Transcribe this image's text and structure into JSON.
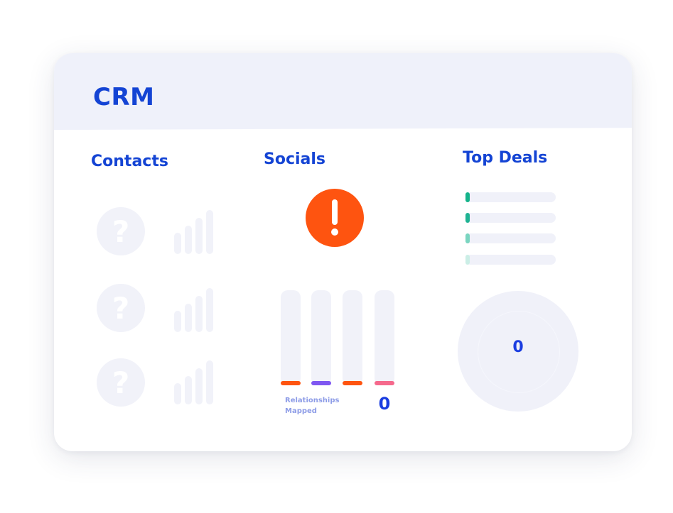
{
  "app": {
    "title": "CRM"
  },
  "contacts": {
    "title": "Contacts",
    "items": [
      {
        "avatar_glyph": "?",
        "signal_bars": 4
      },
      {
        "avatar_glyph": "?",
        "signal_bars": 4
      },
      {
        "avatar_glyph": "?",
        "signal_bars": 4
      }
    ]
  },
  "socials": {
    "title": "Socials",
    "alert_icon": "exclamation-alert-icon",
    "alert_color": "#fe5410",
    "bars": [
      {
        "accent_color": "#fe5410"
      },
      {
        "accent_color": "#7f57f1"
      },
      {
        "accent_color": "#fe5410"
      },
      {
        "accent_color": "#f5698c"
      }
    ],
    "relationships_label_line1": "Relationships",
    "relationships_label_line2": "Mapped",
    "relationships_count": "0"
  },
  "top_deals": {
    "title": "Top Deals",
    "rows": [
      {
        "accent_color": "#14b38a"
      },
      {
        "accent_color": "#1fb393"
      },
      {
        "accent_color": "#7ad5c0"
      },
      {
        "accent_color": "#cbeee6"
      }
    ],
    "total": "0"
  },
  "colors": {
    "brand_blue": "#1444d4",
    "header_bg": "#eff1fa",
    "placeholder_gray": "#f1f2f9"
  }
}
